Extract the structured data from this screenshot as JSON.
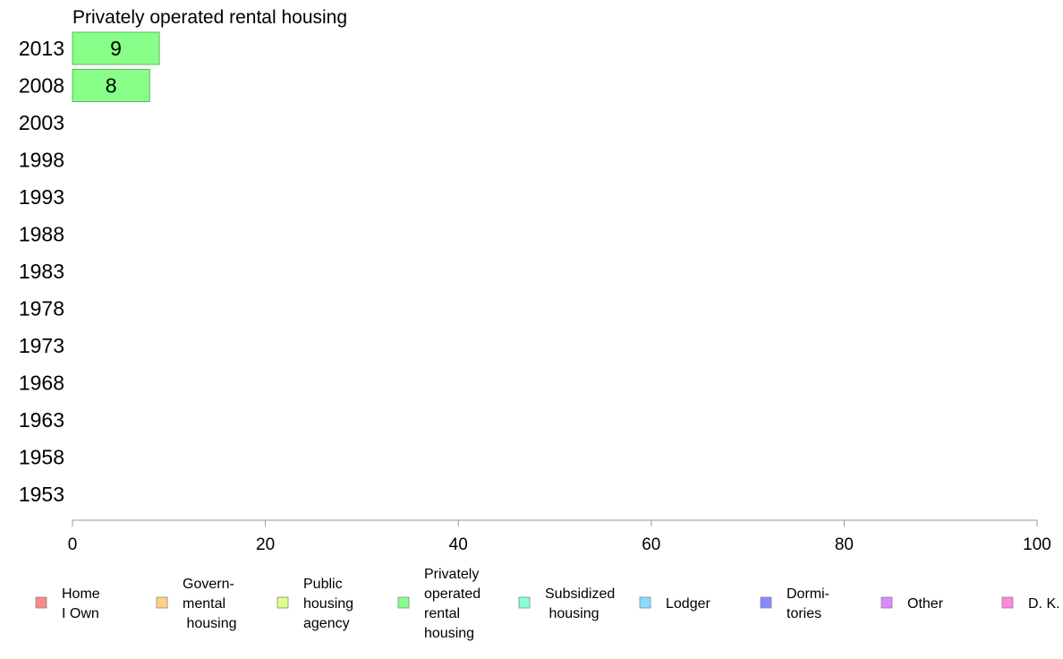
{
  "chart_data": {
    "type": "bar",
    "orientation": "horizontal",
    "title": "Privately operated rental housing",
    "categories": [
      "2013",
      "2008",
      "2003",
      "1998",
      "1993",
      "1988",
      "1983",
      "1978",
      "1973",
      "1968",
      "1963",
      "1958",
      "1953"
    ],
    "series": [
      {
        "name": "Privately operated rental housing",
        "color": "#88ff88",
        "values": [
          9,
          8,
          null,
          null,
          null,
          null,
          null,
          null,
          null,
          null,
          null,
          null,
          null
        ],
        "data_labels": [
          "9",
          "8",
          "",
          "",
          "",
          "",
          "",
          "",
          "",
          "",
          "",
          "",
          ""
        ]
      }
    ],
    "xlim": [
      0,
      100
    ],
    "x_ticks": [
      0,
      20,
      40,
      60,
      80,
      100
    ],
    "x_tick_labels": [
      "0",
      "20",
      "40",
      "60",
      "80",
      "100"
    ],
    "xlabel": "",
    "ylabel": "",
    "grid": false,
    "legend": {
      "position": "bottom",
      "entries": [
        {
          "lines": [
            "Home",
            "I Own"
          ],
          "color": "#ff8888"
        },
        {
          "lines": [
            "Govern-",
            "mental",
            " housing"
          ],
          "color": "#ffd088"
        },
        {
          "lines": [
            "Public",
            "housing",
            "agency"
          ],
          "color": "#e0ff88"
        },
        {
          "lines": [
            "Privately",
            "operated",
            "rental",
            "housing"
          ],
          "color": "#88ff88"
        },
        {
          "lines": [
            "Subsidized",
            " housing"
          ],
          "color": "#88ffd8"
        },
        {
          "lines": [
            "Lodger"
          ],
          "color": "#88ddff"
        },
        {
          "lines": [
            "Dormi-",
            "tories"
          ],
          "color": "#8888ff"
        },
        {
          "lines": [
            "Other"
          ],
          "color": "#e088ff"
        },
        {
          "lines": [
            "D. K."
          ],
          "color": "#ff88dd"
        }
      ]
    }
  }
}
